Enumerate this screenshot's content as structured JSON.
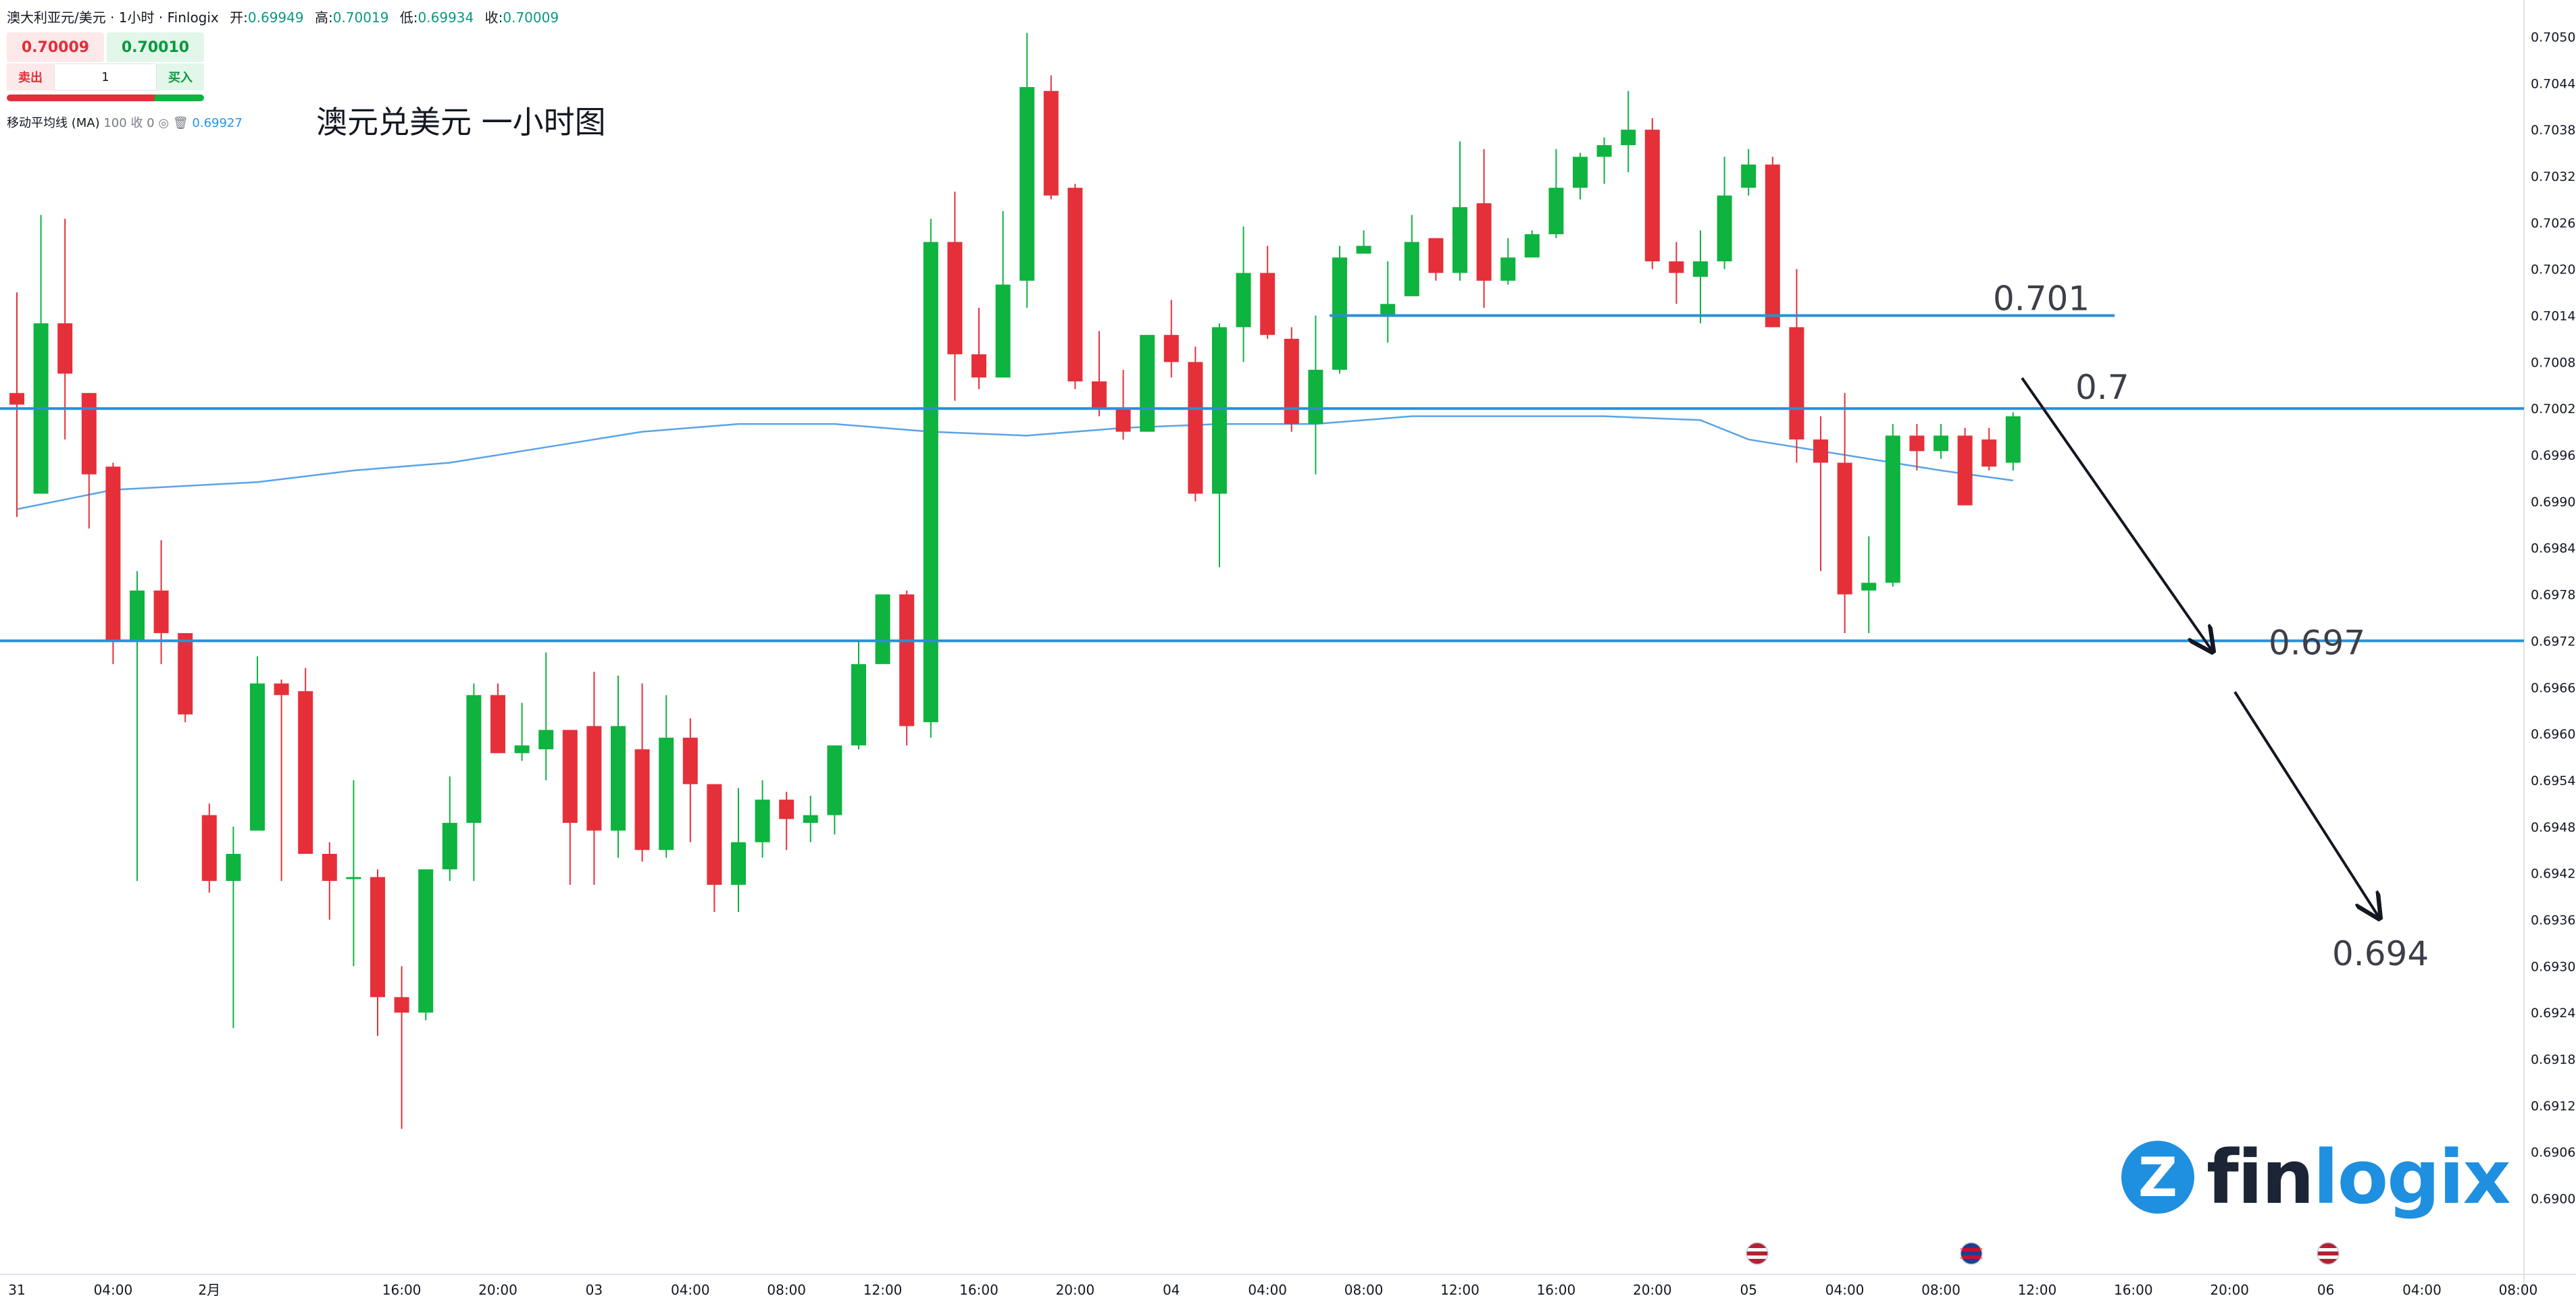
{
  "header": {
    "symbol": "澳大利亚元/美元 · 1小时 · Finlogix",
    "open_label": "开:",
    "open": "0.69949",
    "high_label": "高:",
    "high": "0.70019",
    "low_label": "低:",
    "low": "0.69934",
    "close_label": "收:",
    "close": "0.70009"
  },
  "trade": {
    "sell_price": "0.70009",
    "buy_price": "0.70010",
    "sell_label": "卖出",
    "buy_label": "买入",
    "quantity": "1",
    "sell_ratio": 0.75
  },
  "indicator": {
    "name": "移动平均线 (MA)",
    "params": "100 收 0",
    "value": "0.69927"
  },
  "title": "澳元兑美元 一小时图",
  "logo": {
    "mark": "Z",
    "text_a": "fin",
    "text_b": "logix"
  },
  "colors": {
    "up": "#0fb33f",
    "down": "#e5303a",
    "line": "#2a8fd8",
    "ma": "#5aa3e8"
  },
  "chart_data": {
    "type": "candlestick",
    "title": "澳元兑美元 一小时图",
    "y_ticks": [
      "0.70500",
      "0.70440",
      "0.70380",
      "0.70320",
      "0.70260",
      "0.70200",
      "0.70140",
      "0.70080",
      "0.70020",
      "0.69960",
      "0.69900",
      "0.69840",
      "0.69780",
      "0.69720",
      "0.69660",
      "0.69600",
      "0.69540",
      "0.69480",
      "0.69420",
      "0.69360",
      "0.69300",
      "0.69240",
      "0.69180",
      "0.69120",
      "0.69060",
      "0.69000"
    ],
    "ylim": [
      0.6897,
      0.7053
    ],
    "x_ticks": [
      {
        "label": "31",
        "bar": 0
      },
      {
        "label": "04:00",
        "bar": 4
      },
      {
        "label": "2月",
        "bar": 8
      },
      {
        "label": "16:00",
        "bar": 16
      },
      {
        "label": "20:00",
        "bar": 20
      },
      {
        "label": "03",
        "bar": 24
      },
      {
        "label": "04:00",
        "bar": 28
      },
      {
        "label": "08:00",
        "bar": 32
      },
      {
        "label": "12:00",
        "bar": 36
      },
      {
        "label": "16:00",
        "bar": 40
      },
      {
        "label": "20:00",
        "bar": 44
      },
      {
        "label": "04",
        "bar": 48
      },
      {
        "label": "04:00",
        "bar": 52
      },
      {
        "label": "08:00",
        "bar": 56
      },
      {
        "label": "12:00",
        "bar": 60
      },
      {
        "label": "16:00",
        "bar": 64
      },
      {
        "label": "20:00",
        "bar": 68
      },
      {
        "label": "05",
        "bar": 72
      },
      {
        "label": "04:00",
        "bar": 76
      },
      {
        "label": "08:00",
        "bar": 80
      },
      {
        "label": "12:00",
        "bar": 84
      },
      {
        "label": "16:00",
        "bar": 88
      },
      {
        "label": "20:00",
        "bar": 92
      },
      {
        "label": "06",
        "bar": 96
      },
      {
        "label": "04:00",
        "bar": 100
      },
      {
        "label": "08:00",
        "bar": 104
      }
    ],
    "candles": [
      [
        0.7004,
        0.70025,
        0.7017,
        0.6988
      ],
      [
        0.6991,
        0.7013,
        0.7027,
        0.6991
      ],
      [
        0.7013,
        0.70065,
        0.70265,
        0.6998
      ],
      [
        0.7004,
        0.69935,
        0.7004,
        0.69865
      ],
      [
        0.69945,
        0.6972,
        0.6995,
        0.6969
      ],
      [
        0.6972,
        0.69785,
        0.6981,
        0.6941
      ],
      [
        0.69785,
        0.6973,
        0.6985,
        0.6969
      ],
      [
        0.6973,
        0.69625,
        0.6973,
        0.69615
      ],
      [
        0.69495,
        0.6941,
        0.6951,
        0.69395
      ],
      [
        0.6941,
        0.69445,
        0.6948,
        0.6922
      ],
      [
        0.69475,
        0.69665,
        0.697,
        0.69475
      ],
      [
        0.69665,
        0.6965,
        0.6967,
        0.6941
      ],
      [
        0.69655,
        0.69445,
        0.69685,
        0.69445
      ],
      [
        0.69445,
        0.6941,
        0.6946,
        0.6936
      ],
      [
        0.69415,
        0.69415,
        0.6954,
        0.693
      ],
      [
        0.69415,
        0.6926,
        0.69425,
        0.6921
      ],
      [
        0.6926,
        0.6924,
        0.693,
        0.6909
      ],
      [
        0.6924,
        0.69425,
        0.69425,
        0.6923
      ],
      [
        0.69425,
        0.69485,
        0.69545,
        0.6941
      ],
      [
        0.69485,
        0.6965,
        0.69665,
        0.6941
      ],
      [
        0.6965,
        0.69575,
        0.69665,
        0.69575
      ],
      [
        0.69575,
        0.69585,
        0.6964,
        0.69565
      ],
      [
        0.6958,
        0.69605,
        0.69705,
        0.6954
      ],
      [
        0.69605,
        0.69485,
        0.69605,
        0.69405
      ],
      [
        0.6961,
        0.69475,
        0.6968,
        0.69405
      ],
      [
        0.69475,
        0.6961,
        0.69675,
        0.6944
      ],
      [
        0.6958,
        0.6945,
        0.69665,
        0.69435
      ],
      [
        0.6945,
        0.69595,
        0.6965,
        0.6944
      ],
      [
        0.69595,
        0.69535,
        0.6962,
        0.6946
      ],
      [
        0.69535,
        0.69405,
        0.69535,
        0.6937
      ],
      [
        0.69405,
        0.6946,
        0.6953,
        0.6937
      ],
      [
        0.6946,
        0.69515,
        0.6954,
        0.6944
      ],
      [
        0.69515,
        0.6949,
        0.69525,
        0.6945
      ],
      [
        0.69485,
        0.69495,
        0.6952,
        0.6946
      ],
      [
        0.69495,
        0.69585,
        0.69585,
        0.6947
      ],
      [
        0.69585,
        0.6969,
        0.6972,
        0.6958
      ],
      [
        0.6969,
        0.6978,
        0.6978,
        0.6969
      ],
      [
        0.6978,
        0.6961,
        0.69785,
        0.69585
      ],
      [
        0.69615,
        0.70235,
        0.70265,
        0.69595
      ],
      [
        0.70235,
        0.7009,
        0.703,
        0.7003
      ],
      [
        0.7009,
        0.7006,
        0.7015,
        0.70045
      ],
      [
        0.7006,
        0.7018,
        0.70275,
        0.7006
      ],
      [
        0.70185,
        0.70435,
        0.70505,
        0.7015
      ],
      [
        0.7043,
        0.70295,
        0.7045,
        0.7029
      ],
      [
        0.70305,
        0.70055,
        0.7031,
        0.70045
      ],
      [
        0.70055,
        0.7002,
        0.7012,
        0.7001
      ],
      [
        0.7002,
        0.6999,
        0.7007,
        0.6998
      ],
      [
        0.6999,
        0.70115,
        0.70115,
        0.6999
      ],
      [
        0.70115,
        0.7008,
        0.7016,
        0.7006
      ],
      [
        0.7008,
        0.6991,
        0.701,
        0.699
      ],
      [
        0.6991,
        0.70125,
        0.7013,
        0.69815
      ],
      [
        0.70125,
        0.70195,
        0.70255,
        0.7008
      ],
      [
        0.70195,
        0.70115,
        0.7023,
        0.7011
      ],
      [
        0.7011,
        0.7,
        0.70125,
        0.6999
      ],
      [
        0.7,
        0.7007,
        0.7014,
        0.69935
      ],
      [
        0.7007,
        0.70215,
        0.7023,
        0.70065
      ],
      [
        0.7022,
        0.7023,
        0.7025,
        0.7022
      ],
      [
        0.7014,
        0.70155,
        0.7021,
        0.70105
      ],
      [
        0.70165,
        0.70235,
        0.7027,
        0.70165
      ],
      [
        0.7024,
        0.70195,
        0.7024,
        0.70185
      ],
      [
        0.70195,
        0.7028,
        0.70365,
        0.70185
      ],
      [
        0.70285,
        0.70185,
        0.70355,
        0.7015
      ],
      [
        0.70185,
        0.70215,
        0.7024,
        0.7018
      ],
      [
        0.70215,
        0.70245,
        0.7025,
        0.70215
      ],
      [
        0.70245,
        0.70305,
        0.70355,
        0.7024
      ],
      [
        0.70305,
        0.70345,
        0.7035,
        0.7029
      ],
      [
        0.70345,
        0.7036,
        0.7037,
        0.7031
      ],
      [
        0.7036,
        0.7038,
        0.7043,
        0.70325
      ],
      [
        0.7038,
        0.7021,
        0.70395,
        0.702
      ],
      [
        0.7021,
        0.70195,
        0.70235,
        0.70155
      ],
      [
        0.7019,
        0.7021,
        0.7025,
        0.7013
      ],
      [
        0.7021,
        0.70295,
        0.70345,
        0.702
      ],
      [
        0.70305,
        0.70335,
        0.70355,
        0.70295
      ],
      [
        0.70335,
        0.70125,
        0.70345,
        0.70125
      ],
      [
        0.70125,
        0.6998,
        0.702,
        0.6995
      ],
      [
        0.6998,
        0.6995,
        0.7001,
        0.6981
      ],
      [
        0.6995,
        0.6978,
        0.7004,
        0.6973
      ],
      [
        0.69785,
        0.69795,
        0.69855,
        0.6973
      ],
      [
        0.69795,
        0.69985,
        0.7,
        0.6979
      ],
      [
        0.69985,
        0.69965,
        0.7,
        0.6994
      ],
      [
        0.69965,
        0.69985,
        0.7,
        0.69955
      ],
      [
        0.69985,
        0.69895,
        0.69995,
        0.69895
      ],
      [
        0.6998,
        0.69945,
        0.69995,
        0.6994
      ],
      [
        0.6995,
        0.7001,
        0.70015,
        0.6994
      ]
    ],
    "ma100": [
      [
        0,
        0.6989
      ],
      [
        4,
        0.69915
      ],
      [
        10,
        0.69925
      ],
      [
        14,
        0.6994
      ],
      [
        18,
        0.6995
      ],
      [
        22,
        0.6997
      ],
      [
        26,
        0.6999
      ],
      [
        30,
        0.7
      ],
      [
        34,
        0.7
      ],
      [
        38,
        0.6999
      ],
      [
        42,
        0.69985
      ],
      [
        46,
        0.69995
      ],
      [
        50,
        0.7
      ],
      [
        54,
        0.7
      ],
      [
        58,
        0.7001
      ],
      [
        62,
        0.7001
      ],
      [
        66,
        0.7001
      ],
      [
        70,
        0.70005
      ],
      [
        72,
        0.6998
      ],
      [
        74,
        0.6997
      ],
      [
        76,
        0.6996
      ],
      [
        78,
        0.6995
      ],
      [
        80,
        0.6994
      ],
      [
        83,
        0.69927
      ]
    ],
    "annotations": {
      "hlines": [
        {
          "level": 0.7002,
          "label": "0.7"
        },
        {
          "level": 0.6972,
          "label": "0.697"
        },
        {
          "level": 0.7014,
          "label": "0.701"
        }
      ],
      "target_label": "0.694"
    }
  }
}
